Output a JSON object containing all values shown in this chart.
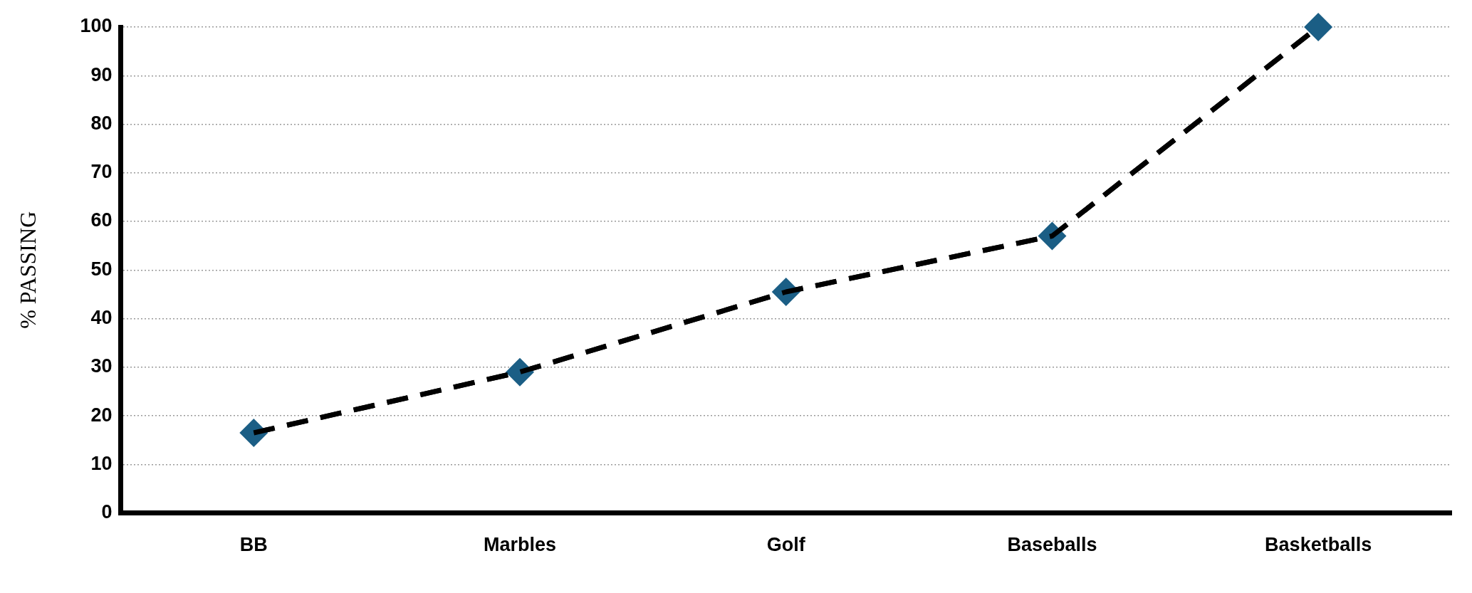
{
  "chart_data": {
    "type": "line",
    "ylabel": "% PASSING",
    "categories": [
      "BB",
      "Marbles",
      "Golf",
      "Baseballs",
      "Basketballs"
    ],
    "series": [
      {
        "color": "#1b5e85",
        "values": [
          16.5,
          29,
          45.5,
          57,
          100
        ]
      }
    ],
    "ylim": [
      0,
      100
    ],
    "yticks": [
      0,
      10,
      20,
      30,
      40,
      50,
      60,
      70,
      80,
      90,
      100
    ],
    "grid": "y",
    "legend": false,
    "marker": "diamond",
    "line_style": "dashed"
  }
}
